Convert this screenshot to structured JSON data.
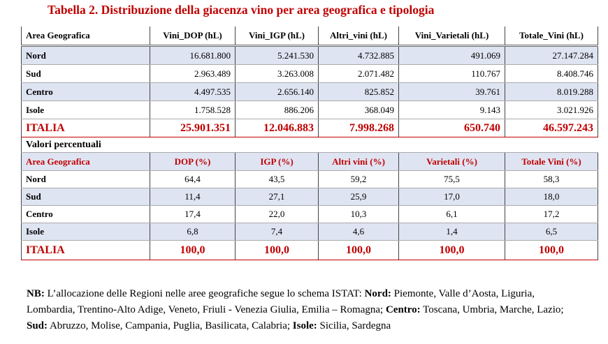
{
  "title": "Tabella 2. Distribuzione della giacenza vino per area geografica e tipologia",
  "table1": {
    "columns": [
      "Area Geografica",
      "Vini_DOP (hL)",
      "Vini_IGP (hL)",
      "Altri_vini (hL)",
      "Vini_Varietali (hL)",
      "Totale_Vini (hL)"
    ],
    "rows": [
      [
        "Nord",
        "16.681.800",
        "5.241.530",
        "4.732.885",
        "491.069",
        "27.147.284"
      ],
      [
        "Sud",
        "2.963.489",
        "3.263.008",
        "2.071.482",
        "110.767",
        "8.408.746"
      ],
      [
        "Centro",
        "4.497.535",
        "2.656.140",
        "825.852",
        "39.761",
        "8.019.288"
      ],
      [
        "Isole",
        "1.758.528",
        "886.206",
        "368.049",
        "9.143",
        "3.021.926"
      ]
    ],
    "total": [
      "ITALIA",
      "25.901.351",
      "12.046.883",
      "7.998.268",
      "650.740",
      "46.597.243"
    ]
  },
  "section_label": "Valori percentuali",
  "table2": {
    "columns": [
      "Area Geografica",
      "DOP (%)",
      "IGP (%)",
      "Altri vini (%)",
      "Varietali (%)",
      "Totale Vini (%)"
    ],
    "rows": [
      [
        "Nord",
        "64,4",
        "43,5",
        "59,2",
        "75,5",
        "58,3"
      ],
      [
        "Sud",
        "11,4",
        "27,1",
        "25,9",
        "17,0",
        "18,0"
      ],
      [
        "Centro",
        "17,4",
        "22,0",
        "10,3",
        "6,1",
        "17,2"
      ],
      [
        "Isole",
        "6,8",
        "7,4",
        "4,6",
        "1,4",
        "6,5"
      ]
    ],
    "total": [
      "ITALIA",
      "100,0",
      "100,0",
      "100,0",
      "100,0",
      "100,0"
    ]
  },
  "note": {
    "label": "NB:",
    "intro": "L’allocazione delle Regioni nelle aree geografiche segue lo schema ISTAT:",
    "groups": [
      {
        "name": "Nord:",
        "regions": "Piemonte, Valle d’Aosta, Liguria, Lombardia, Trentino-Alto Adige, Veneto, Friuli - Venezia Giulia, Emilia – Romagna;"
      },
      {
        "name": "Centro:",
        "regions": "Toscana, Umbria, Marche, Lazio;"
      },
      {
        "name": "Sud:",
        "regions": "Abruzzo, Molise, Campania, Puglia, Basilicata, Calabria;"
      },
      {
        "name": "Isole:",
        "regions": "Sicilia, Sardegna"
      }
    ]
  }
}
